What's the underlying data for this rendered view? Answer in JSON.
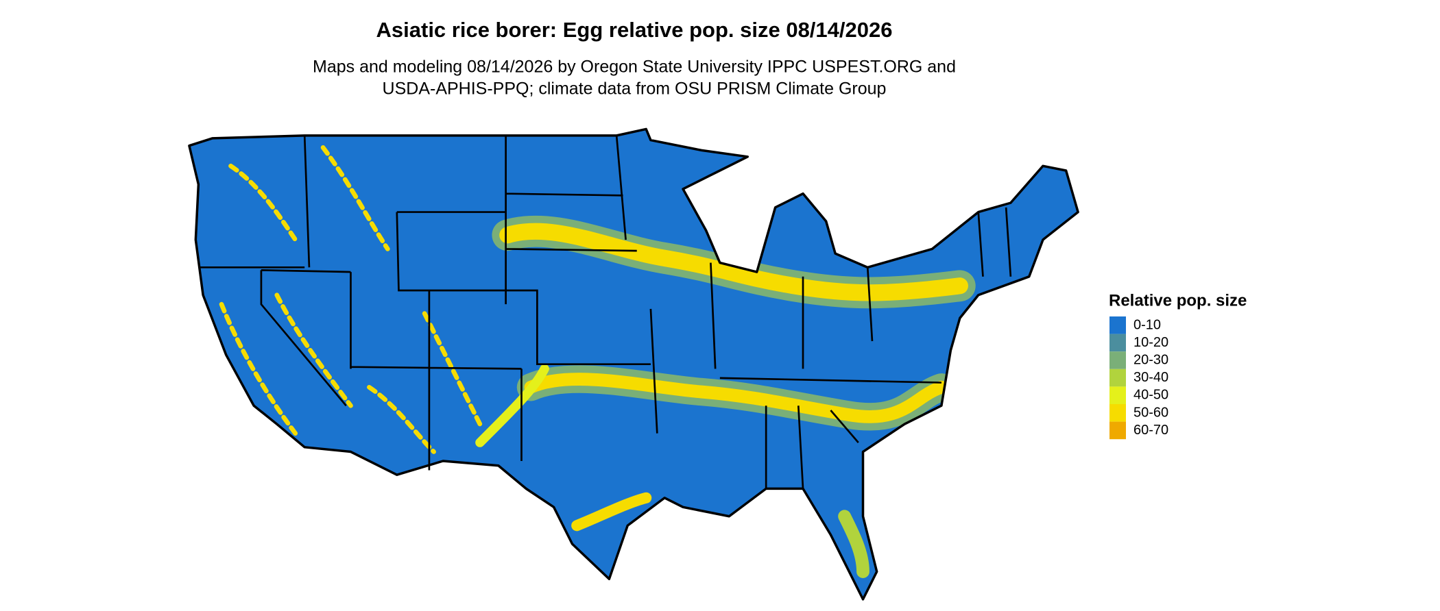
{
  "title": "Asiatic rice borer: Egg relative pop. size 08/14/2026",
  "subtitle": [
    "Maps and modeling 08/14/2026 by Oregon State University IPPC USPEST.ORG and",
    "USDA-APHIS-PPQ; climate data from OSU PRISM Climate Group"
  ],
  "legend": {
    "title": "Relative pop. size",
    "items": [
      {
        "label": "0-10",
        "color": "#1b74cf"
      },
      {
        "label": "10-20",
        "color": "#4b8e9e"
      },
      {
        "label": "20-30",
        "color": "#7aaf78"
      },
      {
        "label": "30-40",
        "color": "#b1d33d"
      },
      {
        "label": "40-50",
        "color": "#e4f01b"
      },
      {
        "label": "50-60",
        "color": "#f6dc00"
      },
      {
        "label": "60-70",
        "color": "#efa900"
      }
    ]
  }
}
